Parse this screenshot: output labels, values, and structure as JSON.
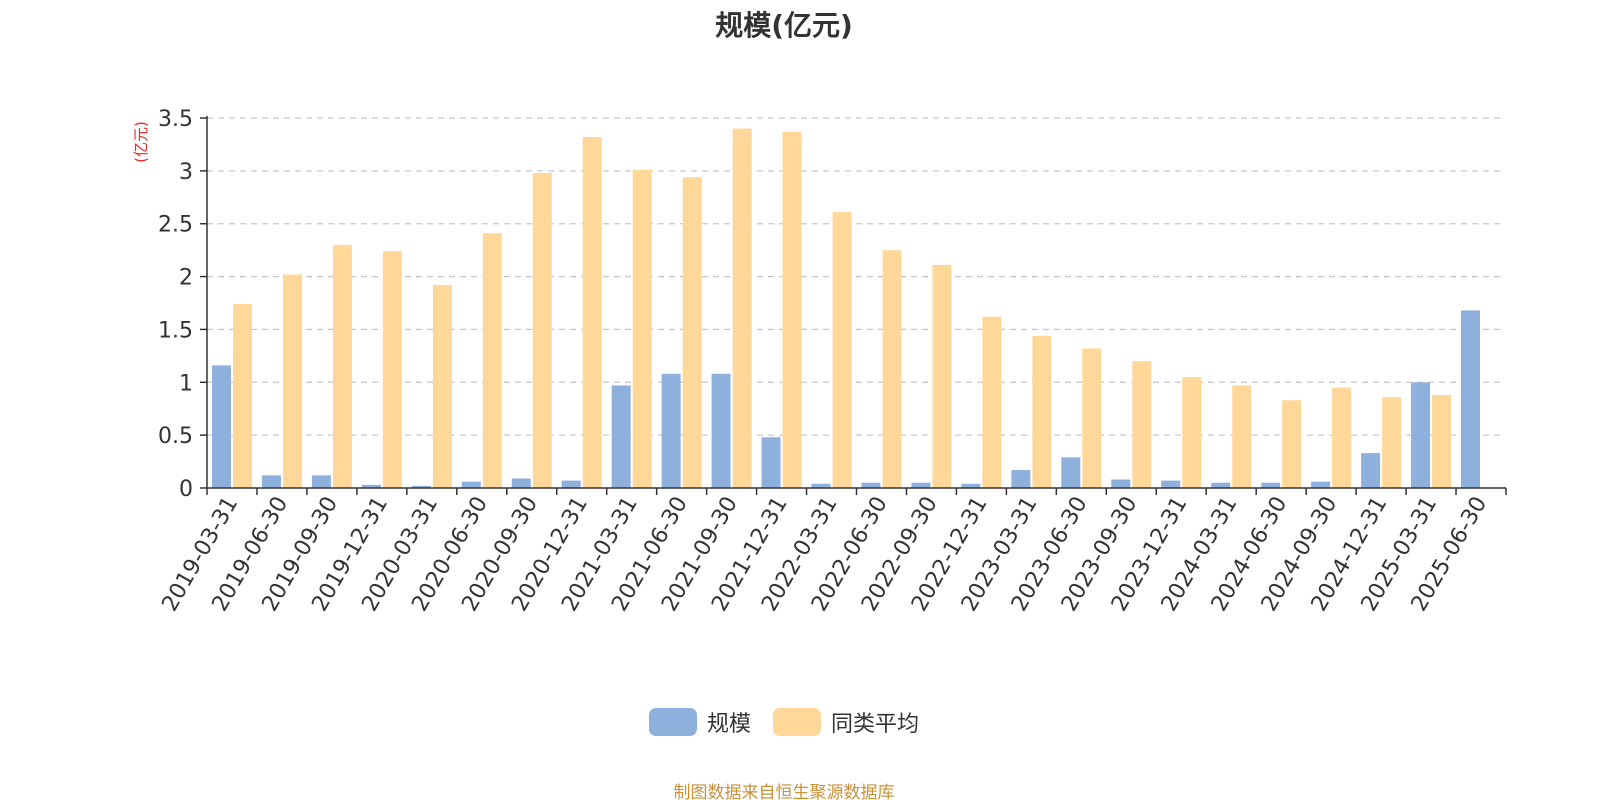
{
  "colors": {
    "series_scale": "#8eb0dd",
    "series_avg": "#ffd899",
    "unit_label": "#e8251f",
    "source_text": "#c8913a"
  },
  "chart_data": {
    "type": "bar",
    "title": "规模(亿元)",
    "ylabel": "(亿元)",
    "xlabel": "",
    "ylim": [
      0,
      3.5
    ],
    "yticks": [
      "0",
      "0.5",
      "1",
      "1.5",
      "2",
      "2.5",
      "3",
      "3.5"
    ],
    "grid": true,
    "legend_position": "bottom",
    "categories": [
      "2019-03-31",
      "2019-06-30",
      "2019-09-30",
      "2019-12-31",
      "2020-03-31",
      "2020-06-30",
      "2020-09-30",
      "2020-12-31",
      "2021-03-31",
      "2021-06-30",
      "2021-09-30",
      "2021-12-31",
      "2022-03-31",
      "2022-06-30",
      "2022-09-30",
      "2022-12-31",
      "2023-03-31",
      "2023-06-30",
      "2023-09-30",
      "2023-12-31",
      "2024-03-31",
      "2024-06-30",
      "2024-09-30",
      "2024-12-31",
      "2025-03-31",
      "2025-06-30"
    ],
    "series": [
      {
        "name": "规模",
        "values": [
          1.16,
          0.12,
          0.12,
          0.03,
          0.02,
          0.06,
          0.09,
          0.07,
          0.97,
          1.08,
          1.08,
          0.48,
          0.04,
          0.05,
          0.05,
          0.04,
          0.17,
          0.29,
          0.08,
          0.07,
          0.05,
          0.05,
          0.06,
          0.33,
          1.0,
          1.68
        ]
      },
      {
        "name": "同类平均",
        "values": [
          1.74,
          2.02,
          2.3,
          2.24,
          1.92,
          2.41,
          2.98,
          3.32,
          3.01,
          2.94,
          3.4,
          3.37,
          2.61,
          2.25,
          2.11,
          1.62,
          1.44,
          1.32,
          1.2,
          1.05,
          0.97,
          0.83,
          0.95,
          0.86,
          0.88,
          null
        ]
      }
    ]
  },
  "legend": {
    "items": [
      {
        "label": "规模"
      },
      {
        "label": "同类平均"
      }
    ]
  },
  "footer": {
    "source": "制图数据来自恒生聚源数据库"
  }
}
